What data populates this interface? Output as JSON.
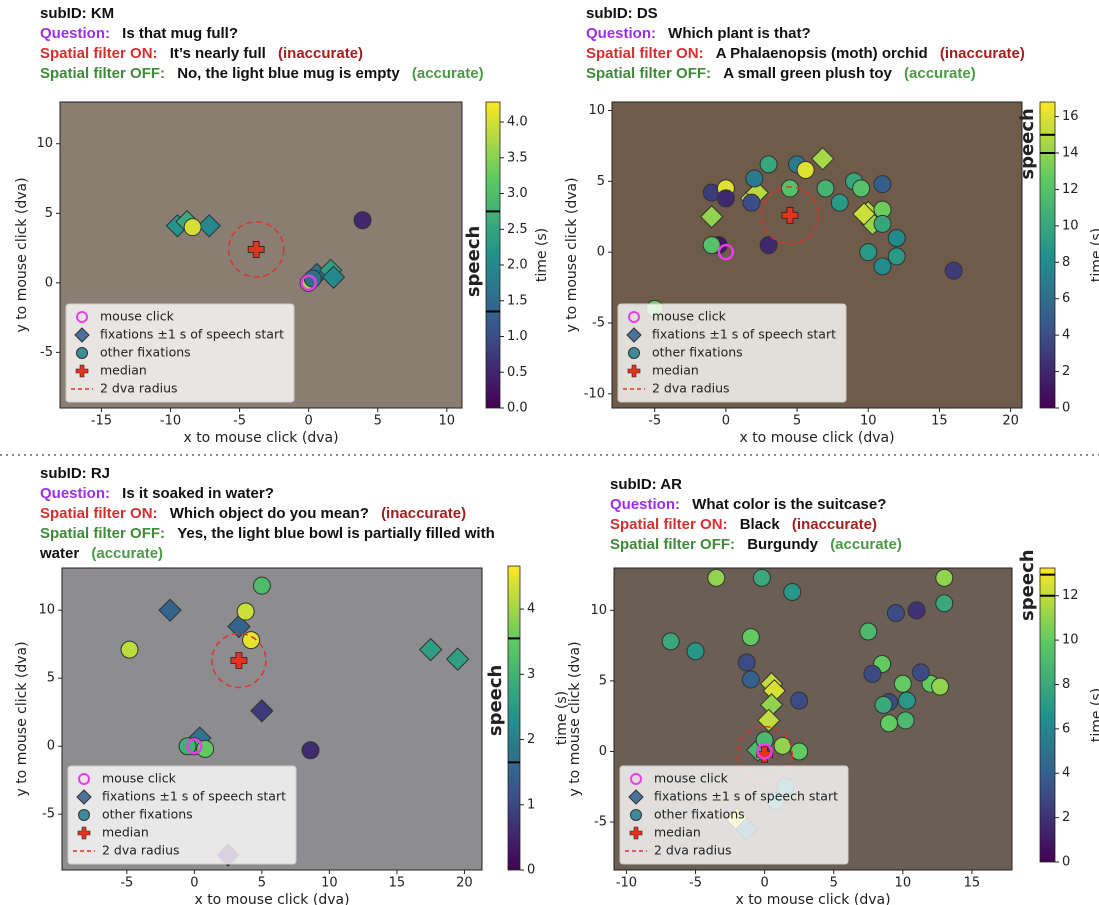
{
  "chart_data": [
    {
      "type": "scatter",
      "header": {
        "subid": "subID: KM",
        "question_label": "Question:",
        "question": "Is that mug full?",
        "on_label": "Spatial filter ON:",
        "on_answer": "It’s nearly full",
        "on_verdict": "(inaccurate)",
        "off_label": "Spatial filter OFF:",
        "off_answer": "No, the light blue mug is empty",
        "off_verdict": "(accurate)"
      },
      "xlabel": "x to mouse click (dva)",
      "ylabel": "y to mouse click (dva)",
      "xlim": [
        -18,
        11.1
      ],
      "ylim": [
        -9,
        13
      ],
      "xticks": [
        -15,
        -10,
        -5,
        0,
        5,
        10
      ],
      "yticks": [
        -5,
        0,
        5,
        10
      ],
      "colorbar": {
        "label": "time (s)",
        "cmap": "viridis",
        "clim": [
          0,
          4.28
        ],
        "ticks": [
          {
            "value": 0,
            "label": "0.0"
          },
          {
            "value": 0.5,
            "label": "0.5"
          },
          {
            "value": 1,
            "label": "1.0"
          },
          {
            "value": 1.5,
            "label": "1.5"
          },
          {
            "value": 2,
            "label": "2.0"
          },
          {
            "value": 2.5,
            "label": "2.5"
          },
          {
            "value": 3,
            "label": "3.0"
          },
          {
            "value": 3.5,
            "label": "3.5"
          },
          {
            "value": 4,
            "label": "4.0"
          }
        ],
        "speech_label": "speech",
        "speech_window": [
          1.35,
          2.75
        ]
      },
      "series": [
        {
          "name": "mouse click",
          "marker": "ring",
          "color": "#e83ee8",
          "x": [
            0
          ],
          "y": [
            0
          ]
        },
        {
          "name": "fixations ±1 s of speech start",
          "marker": "diamond",
          "x": [
            -9.5,
            -7.2,
            -8.8,
            0.6,
            1.6,
            1.8
          ],
          "y": [
            4.1,
            4.1,
            4.4,
            0.6,
            0.9,
            0.4
          ],
          "t": [
            2.2,
            2.0,
            2.6,
            1.6,
            2.4,
            2.0
          ]
        },
        {
          "name": "other fixations",
          "marker": "circle",
          "x": [
            3.9,
            -8.4,
            0,
            0.3
          ],
          "y": [
            4.5,
            4.0,
            0,
            0.3
          ],
          "t": [
            0.5,
            4.0,
            3.7,
            1.6
          ]
        },
        {
          "name": "median",
          "marker": "plus",
          "color": "#e8321e",
          "x": [
            -3.8
          ],
          "y": [
            2.4
          ]
        },
        {
          "name": "2 dva radius",
          "marker": "dashed-circle",
          "color": "#e03030",
          "radius": 2
        }
      ]
    },
    {
      "type": "scatter",
      "header": {
        "subid": "subID: DS",
        "question_label": "Question:",
        "question": "Which plant is that?",
        "on_label": "Spatial filter ON:",
        "on_answer": "A Phalaenopsis (moth) orchid",
        "on_verdict": "(inaccurate)",
        "off_label": "Spatial filter OFF:",
        "off_answer": "A small green plush toy",
        "off_verdict": "(accurate)"
      },
      "xlabel": "x to mouse click (dva)",
      "ylabel": "y to mouse click (dva)",
      "xlim": [
        -8,
        20.8
      ],
      "ylim": [
        -11,
        10.6
      ],
      "xticks": [
        -5,
        0,
        5,
        10,
        15,
        20
      ],
      "yticks": [
        -10,
        -5,
        0,
        5,
        10
      ],
      "colorbar": {
        "label": "time (s)",
        "cmap": "viridis",
        "clim": [
          0,
          16.8
        ],
        "ticks": [
          0,
          2,
          4,
          6,
          8,
          10,
          12,
          14,
          16
        ],
        "speech_label": "speech",
        "speech_window": [
          14,
          15
        ]
      },
      "series": [
        {
          "name": "mouse click",
          "marker": "ring",
          "color": "#e83ee8",
          "x": [
            0
          ],
          "y": [
            0
          ]
        },
        {
          "name": "fixations ±1 s of speech start",
          "marker": "diamond",
          "x": [
            1.8,
            -1,
            2.2,
            6.8,
            10,
            10.3,
            9.7
          ],
          "y": [
            3.8,
            2.5,
            4.2,
            6.6,
            2.8,
            2,
            2.7
          ],
          "t": [
            15,
            14,
            15,
            14.5,
            15,
            14.2,
            15.5
          ]
        },
        {
          "name": "other fixations",
          "marker": "circle",
          "x": [
            -1,
            0,
            0,
            2,
            3,
            5,
            5.6,
            7,
            8,
            9,
            9.5,
            11,
            11,
            11,
            12,
            10,
            11,
            12,
            16,
            3,
            -0.5,
            -1,
            4.5,
            -5,
            1.8
          ],
          "y": [
            4.2,
            4.5,
            3.8,
            5.2,
            6.2,
            6.2,
            5.8,
            4.5,
            3.5,
            5,
            4.5,
            4.8,
            3,
            2,
            1,
            0,
            -1,
            -0.3,
            -1.3,
            0.5,
            0.5,
            0.5,
            4.5,
            -4,
            3.5
          ],
          "t": [
            3,
            16,
            2,
            7,
            10,
            7,
            16,
            11,
            9,
            10,
            12,
            5,
            13,
            10,
            8,
            9,
            8,
            9,
            3,
            2,
            1,
            12,
            12,
            13,
            4
          ]
        },
        {
          "name": "median",
          "marker": "plus",
          "color": "#e8321e",
          "x": [
            4.5
          ],
          "y": [
            2.6
          ]
        },
        {
          "name": "2 dva radius",
          "marker": "dashed-circle",
          "color": "#e03030",
          "radius": 2
        }
      ]
    },
    {
      "type": "scatter",
      "header": {
        "subid": "subID: RJ",
        "question_label": "Question:",
        "question": "Is it soaked in water?",
        "on_label": "Spatial filter ON:",
        "on_answer": "Which object do you mean?",
        "on_verdict": "(inaccurate)",
        "off_label": "Spatial filter OFF:",
        "off_answer": "Yes, the light blue bowl is partially filled with water",
        "off_verdict": "(accurate)"
      },
      "xlabel": "x to mouse click (dva)",
      "ylabel": "y to mouse click (dva)",
      "xlim": [
        -9.8,
        21.3
      ],
      "ylim": [
        -9.1,
        13.1
      ],
      "xticks": [
        -5,
        0,
        5,
        10,
        15,
        20
      ],
      "yticks": [
        -5,
        0,
        5,
        10
      ],
      "colorbar": {
        "label": "time (s)",
        "cmap": "viridis",
        "clim": [
          0,
          4.66
        ],
        "ticks": [
          0,
          1,
          2,
          3,
          4
        ],
        "speech_label": "speech",
        "speech_window": [
          1.65,
          3.55
        ]
      },
      "series": [
        {
          "name": "mouse click",
          "marker": "ring",
          "color": "#e83ee8",
          "x": [
            0
          ],
          "y": [
            0
          ]
        },
        {
          "name": "fixations ±1 s of speech start",
          "marker": "diamond",
          "x": [
            -1.8,
            3.3,
            5,
            0.4,
            17.5,
            19.5,
            2.5
          ],
          "y": [
            10,
            8.8,
            2.6,
            0.6,
            7.1,
            6.4,
            -8
          ],
          "t": [
            1.5,
            1.5,
            0.8,
            1.8,
            2.6,
            2.6,
            0.3
          ]
        },
        {
          "name": "other fixations",
          "marker": "circle",
          "x": [
            -4.8,
            5,
            3.8,
            4.2,
            0,
            0.8,
            8.6,
            -0.5
          ],
          "y": [
            7.1,
            11.8,
            9.9,
            7.8,
            0,
            -0.2,
            -0.3,
            0
          ],
          "t": [
            4.2,
            3.2,
            4.3,
            4.5,
            3,
            3.5,
            0.6,
            3
          ]
        },
        {
          "name": "median",
          "marker": "plus",
          "color": "#e8321e",
          "x": [
            3.3
          ],
          "y": [
            6.3
          ]
        },
        {
          "name": "2 dva radius",
          "marker": "dashed-circle",
          "color": "#e03030",
          "radius": 2
        }
      ]
    },
    {
      "type": "scatter",
      "header": {
        "subid": "subID: AR",
        "question_label": "Question:",
        "question": "What color is the suitcase?",
        "on_label": "Spatial filter ON:",
        "on_answer": "Black",
        "on_verdict": "(inaccurate)",
        "off_label": "Spatial filter OFF:",
        "off_answer": "Burgundy",
        "off_verdict": "(accurate)"
      },
      "xlabel": "x to mouse click (dva)",
      "ylabel": "y to mouse click (dva)",
      "xlim": [
        -10.9,
        17.9
      ],
      "ylim": [
        -8.4,
        13
      ],
      "xticks": [
        -10,
        -5,
        0,
        5,
        10,
        15
      ],
      "yticks": [
        -5,
        0,
        5,
        10
      ],
      "colorbar": {
        "label": "time (s)",
        "cmap": "viridis",
        "clim": [
          0,
          13.25
        ],
        "ticks": [
          0,
          2,
          4,
          6,
          8,
          10,
          12
        ],
        "speech_label": "speech",
        "speech_window": [
          12,
          12.95
        ]
      },
      "series": [
        {
          "name": "mouse click",
          "marker": "ring",
          "color": "#e83ee8",
          "x": [
            0
          ],
          "y": [
            0
          ]
        },
        {
          "name": "fixations ±1 s of speech start",
          "marker": "diamond",
          "x": [
            0.5,
            0.7,
            0.5,
            0.3,
            -0.5,
            -2,
            -1.3
          ],
          "y": [
            4.8,
            4.3,
            3.3,
            2.2,
            0.1,
            -4.8,
            -5.5
          ],
          "t": [
            12,
            12.5,
            11,
            12,
            9,
            12.5,
            5
          ]
        },
        {
          "name": "other fixations",
          "marker": "circle",
          "x": [
            -3.5,
            -0.2,
            2,
            -6.8,
            -5,
            -1,
            -1.3,
            -1,
            2.5,
            0,
            1.3,
            2.5,
            0.8,
            1.5,
            9.5,
            11,
            13,
            13,
            7.5,
            8.5,
            10,
            7.8,
            9,
            10.3,
            12,
            12.7,
            10.2,
            11.3,
            8.6,
            9
          ],
          "y": [
            12.3,
            12.3,
            11.3,
            7.8,
            7.1,
            8.1,
            6.3,
            5.1,
            3.6,
            0.8,
            0.4,
            0,
            -3.5,
            -2.5,
            9.8,
            10,
            10.5,
            12.3,
            8.5,
            6.2,
            4.8,
            5.5,
            3.5,
            3.6,
            4.8,
            4.6,
            2.2,
            5.6,
            3.3,
            2
          ],
          "t": [
            11,
            8,
            7,
            8,
            7,
            10,
            3,
            4,
            3,
            9,
            11,
            10,
            7,
            6,
            3,
            2,
            8,
            11,
            9,
            10,
            10,
            3,
            3,
            7,
            10,
            11,
            9,
            3,
            8,
            10
          ]
        },
        {
          "name": "median",
          "marker": "plus",
          "color": "#e8321e",
          "x": [
            0
          ],
          "y": [
            -0.2
          ]
        },
        {
          "name": "2 dva radius",
          "marker": "dashed-circle",
          "color": "#e03030",
          "radius": 2
        }
      ]
    }
  ]
}
